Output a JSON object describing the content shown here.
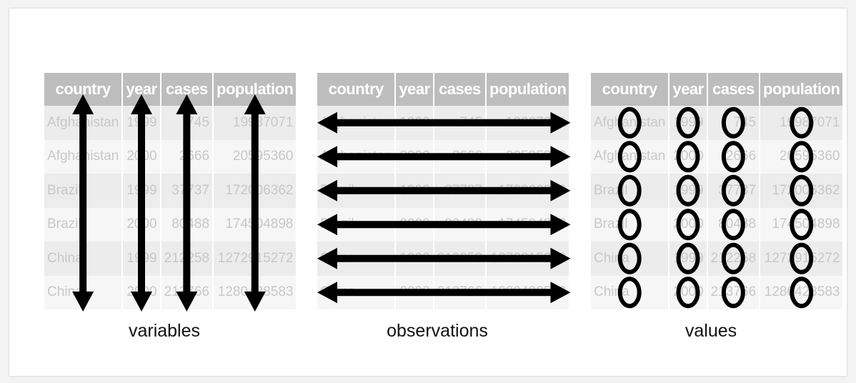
{
  "table": {
    "headers": [
      "country",
      "year",
      "cases",
      "population"
    ],
    "rows": [
      [
        "Afghanistan",
        "1999",
        "745",
        "19987071"
      ],
      [
        "Afghanistan",
        "2000",
        "2666",
        "20595360"
      ],
      [
        "Brazil",
        "1999",
        "37737",
        "172006362"
      ],
      [
        "Brazil",
        "2000",
        "80488",
        "174504898"
      ],
      [
        "China",
        "1999",
        "212258",
        "1272915272"
      ],
      [
        "China",
        "2000",
        "213766",
        "1280428583"
      ]
    ]
  },
  "panels": [
    {
      "id": "variables",
      "caption": "variables",
      "marker": "vertical-arrow"
    },
    {
      "id": "observations",
      "caption": "observations",
      "marker": "horizontal-arrow"
    },
    {
      "id": "values",
      "caption": "values",
      "marker": "circle"
    }
  ],
  "colors": {
    "header_bg": "#bdbdbd",
    "header_text": "#ffffff",
    "cell_text": "#c8c8c8",
    "row_odd": "#ececec",
    "row_even": "#f6f6f6",
    "marker": "#000000"
  }
}
